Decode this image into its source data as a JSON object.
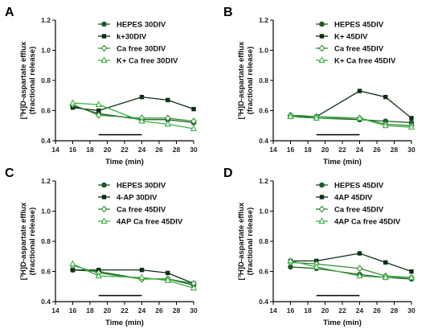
{
  "colors": {
    "dark_green": "#1f5a2a",
    "black_green": "#0d2f15",
    "mid_green": "#2e8b2e",
    "light_green": "#3cb043",
    "axis": "#000000",
    "stimulus_bar": "#000000"
  },
  "chart_data": [
    {
      "panel": "A",
      "type": "line",
      "xlabel": "Time (min)",
      "ylabel_line1": "[³H]D-aspartate efflux",
      "ylabel_line2": "(fractional release)",
      "xlim": [
        14,
        30
      ],
      "ylim": [
        0.4,
        1.2
      ],
      "xticks": [
        14,
        16,
        18,
        20,
        22,
        24,
        26,
        28,
        30
      ],
      "yticks": [
        0.4,
        0.6,
        0.8,
        1.0,
        1.2
      ],
      "ytick_labels": [
        "0.4",
        "0.6",
        "0.8",
        "1.0",
        "1.2"
      ],
      "x": [
        16,
        19,
        24,
        27,
        30
      ],
      "stimulus_bar_x": [
        19,
        24
      ],
      "stimulus_bar_y": 0.44,
      "legend_position": "top-right",
      "series": [
        {
          "name": "HEPES 30DIV",
          "marker": "filled-circle",
          "color": "#1f5a2a",
          "values": [
            0.63,
            0.58,
            0.54,
            0.54,
            0.52
          ]
        },
        {
          "name": "k+30DIV",
          "marker": "filled-square",
          "color": "#0d2f15",
          "values": [
            0.62,
            0.6,
            0.69,
            0.67,
            0.61
          ]
        },
        {
          "name": "Ca free 30DIV",
          "marker": "open-diamond",
          "color": "#2e8b2e",
          "values": [
            0.64,
            0.57,
            0.55,
            0.55,
            0.53
          ]
        },
        {
          "name": "K+ Ca free 30DIV",
          "marker": "open-triangle",
          "color": "#3cb043",
          "values": [
            0.65,
            0.64,
            0.53,
            0.51,
            0.48
          ]
        }
      ]
    },
    {
      "panel": "B",
      "type": "line",
      "xlabel": "Time (min)",
      "ylabel_line1": "[³H]D-aspartate efflux",
      "ylabel_line2": "(fractional release)",
      "xlim": [
        14,
        30
      ],
      "ylim": [
        0.4,
        1.2
      ],
      "xticks": [
        14,
        16,
        18,
        20,
        22,
        24,
        26,
        28,
        30
      ],
      "yticks": [
        0.4,
        0.6,
        0.8,
        1.0,
        1.2
      ],
      "ytick_labels": [
        "0.4",
        "0.6",
        "0.8",
        "1.0",
        "1.2"
      ],
      "x": [
        16,
        19,
        24,
        27,
        30
      ],
      "stimulus_bar_x": [
        19,
        24
      ],
      "stimulus_bar_y": 0.44,
      "legend_position": "top-right",
      "series": [
        {
          "name": "HEPES 45DIV",
          "marker": "filled-circle",
          "color": "#1f5a2a",
          "values": [
            0.56,
            0.55,
            0.54,
            0.53,
            0.52
          ]
        },
        {
          "name": "K+ 45DIV",
          "marker": "filled-square",
          "color": "#0d2f15",
          "values": [
            0.56,
            0.56,
            0.73,
            0.69,
            0.55
          ]
        },
        {
          "name": "Ca free 45DIV",
          "marker": "open-diamond",
          "color": "#2e8b2e",
          "values": [
            0.57,
            0.56,
            0.55,
            0.51,
            0.5
          ]
        },
        {
          "name": "K+ Ca free 45DIV",
          "marker": "open-triangle",
          "color": "#3cb043",
          "values": [
            0.56,
            0.55,
            0.55,
            0.5,
            0.49
          ]
        }
      ]
    },
    {
      "panel": "C",
      "type": "line",
      "xlabel": "Time (min)",
      "ylabel_line1": "[³H]D-aspartate efflux",
      "ylabel_line2": "(fractional release)",
      "xlim": [
        14,
        30
      ],
      "ylim": [
        0.4,
        1.2
      ],
      "xticks": [
        14,
        16,
        18,
        20,
        22,
        24,
        26,
        28,
        30
      ],
      "yticks": [
        0.4,
        0.6,
        0.8,
        1.0,
        1.2
      ],
      "ytick_labels": [
        "0.4",
        "0.6",
        "0.8",
        "1.0",
        "1.2"
      ],
      "x": [
        16,
        19,
        24,
        27,
        30
      ],
      "stimulus_bar_x": [
        19,
        24
      ],
      "stimulus_bar_y": 0.44,
      "legend_position": "top-right",
      "series": [
        {
          "name": "HEPES 30DIV",
          "marker": "filled-circle",
          "color": "#1f5a2a",
          "values": [
            0.61,
            0.6,
            0.55,
            0.55,
            0.51
          ]
        },
        {
          "name": "4-AP 30DIV",
          "marker": "filled-square",
          "color": "#0d2f15",
          "values": [
            0.61,
            0.61,
            0.61,
            0.59,
            0.52
          ]
        },
        {
          "name": "Ca free 45DIV",
          "marker": "open-diamond",
          "color": "#2e8b2e",
          "values": [
            0.64,
            0.59,
            0.55,
            0.55,
            0.52
          ]
        },
        {
          "name": "4AP Ca free 45DIV",
          "marker": "open-triangle",
          "color": "#3cb043",
          "values": [
            0.65,
            0.57,
            0.56,
            0.54,
            0.49
          ]
        }
      ]
    },
    {
      "panel": "D",
      "type": "line",
      "xlabel": "Time (min)",
      "ylabel_line1": "[³H]D-aspartate efflux",
      "ylabel_line2": "(fractional release)",
      "xlim": [
        14,
        30
      ],
      "ylim": [
        0.4,
        1.2
      ],
      "xticks": [
        14,
        16,
        18,
        20,
        22,
        24,
        26,
        28,
        30
      ],
      "yticks": [
        0.4,
        0.6,
        0.8,
        1.0,
        1.2
      ],
      "ytick_labels": [
        "0.4",
        "0.6",
        "0.8",
        "1.0",
        "1.2"
      ],
      "x": [
        16,
        19,
        24,
        27,
        30
      ],
      "stimulus_bar_x": [
        19,
        24
      ],
      "stimulus_bar_y": 0.44,
      "legend_position": "top-right",
      "series": [
        {
          "name": "HEPES 45DIV",
          "marker": "filled-circle",
          "color": "#1f5a2a",
          "values": [
            0.63,
            0.62,
            0.58,
            0.56,
            0.55
          ]
        },
        {
          "name": "4AP 45DIV",
          "marker": "filled-square",
          "color": "#0d2f15",
          "values": [
            0.67,
            0.67,
            0.72,
            0.66,
            0.6
          ]
        },
        {
          "name": "Ca free 45DIV",
          "marker": "open-diamond",
          "color": "#2e8b2e",
          "values": [
            0.66,
            0.65,
            0.62,
            0.57,
            0.56
          ]
        },
        {
          "name": "4AP Ca free 45DIV",
          "marker": "open-triangle",
          "color": "#3cb043",
          "values": [
            0.67,
            0.63,
            0.57,
            0.56,
            0.56
          ]
        }
      ]
    }
  ]
}
